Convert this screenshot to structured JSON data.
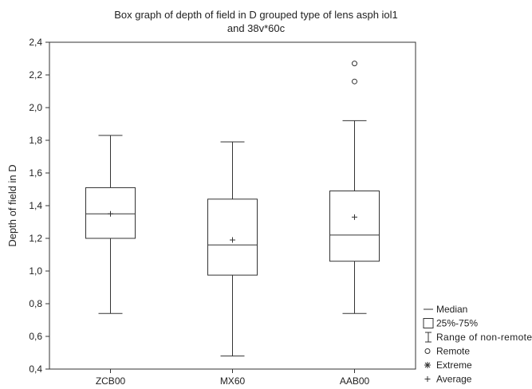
{
  "chart_data": {
    "type": "box",
    "title_line1": "Box graph of depth of field in D grouped type of lens asph iol1",
    "title_line2": "and 38v*60c",
    "xlabel": "",
    "ylabel": "Depth of field in D",
    "ylim": [
      0.4,
      2.4
    ],
    "yticks": [
      "0,4",
      "0,6",
      "0,8",
      "1,0",
      "1,2",
      "1,4",
      "1,6",
      "1,8",
      "2,0",
      "2,2",
      "2,4"
    ],
    "grid": false,
    "legend_position": "bottom-right",
    "legend": {
      "median": "Median",
      "box": "25%-75%",
      "range": "Range of non-remote",
      "remote": "Remote",
      "extreme": "Extreme",
      "average": "Average"
    },
    "groups": [
      {
        "label": "ZCB00",
        "min": 0.74,
        "q1": 1.2,
        "median": 1.35,
        "q3": 1.51,
        "max": 1.83,
        "average": 1.35,
        "remote": []
      },
      {
        "label": "MX60",
        "min": 0.48,
        "q1": 0.975,
        "median": 1.16,
        "q3": 1.44,
        "max": 1.79,
        "average": 1.19,
        "remote": []
      },
      {
        "label": "AAB00",
        "min": 0.74,
        "q1": 1.06,
        "median": 1.22,
        "q3": 1.49,
        "max": 1.92,
        "average": 1.33,
        "remote": [
          2.27,
          2.16
        ]
      }
    ]
  }
}
